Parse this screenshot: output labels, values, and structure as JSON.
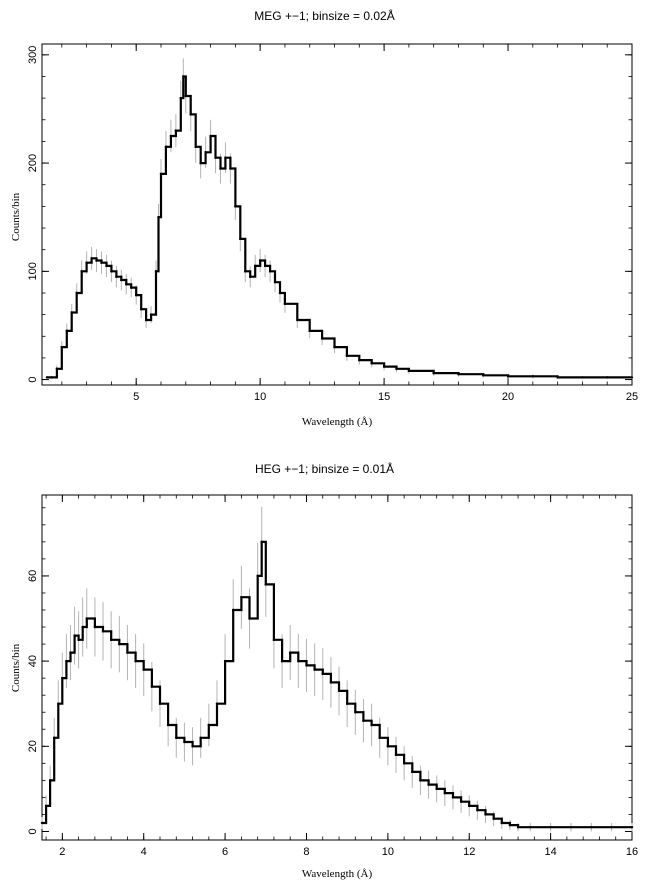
{
  "chart_data": [
    {
      "type": "line",
      "title": "MEG +−1; binsize = 0.02Å",
      "xlabel": "Wavelength (Å)",
      "ylabel": "Counts/bin",
      "xlim": [
        1.2,
        25
      ],
      "ylim": [
        -5,
        310
      ],
      "xticks": [
        5,
        10,
        15,
        20,
        25
      ],
      "yticks": [
        0,
        100,
        200,
        300
      ],
      "grid": false,
      "legend": "none",
      "line_color": "#000000",
      "error_color": "#b4b4b4",
      "series": [
        {
          "x": [
            1.4,
            1.6,
            1.8,
            2.0,
            2.2,
            2.4,
            2.6,
            2.8,
            3.0,
            3.2,
            3.4,
            3.6,
            3.8,
            4.0,
            4.2,
            4.4,
            4.6,
            4.8,
            5.0,
            5.2,
            5.4,
            5.6,
            5.8,
            5.9,
            6.0,
            6.2,
            6.4,
            6.6,
            6.8,
            6.9,
            7.0,
            7.2,
            7.4,
            7.6,
            7.8,
            8.0,
            8.2,
            8.4,
            8.6,
            8.8,
            9.0,
            9.2,
            9.4,
            9.6,
            9.8,
            10.0,
            10.2,
            10.4,
            10.6,
            10.8,
            11.0,
            11.5,
            12.0,
            12.5,
            13.0,
            13.5,
            14.0,
            14.5,
            15.0,
            15.5,
            16.0,
            17.0,
            18.0,
            19.0,
            20.0,
            21.0,
            22.0,
            23.0,
            24.0,
            25.0
          ],
          "y": [
            2,
            2,
            10,
            30,
            45,
            62,
            80,
            100,
            108,
            112,
            110,
            108,
            105,
            100,
            95,
            92,
            88,
            85,
            78,
            65,
            55,
            60,
            100,
            150,
            190,
            215,
            225,
            230,
            260,
            280,
            262,
            245,
            215,
            200,
            210,
            225,
            205,
            195,
            205,
            195,
            160,
            130,
            100,
            95,
            105,
            110,
            105,
            100,
            90,
            80,
            70,
            55,
            45,
            38,
            30,
            22,
            18,
            15,
            12,
            10,
            8,
            6,
            5,
            4,
            3,
            3,
            2,
            2,
            2,
            2
          ]
        }
      ]
    },
    {
      "type": "line",
      "title": "HEG +−1; binsize = 0.01Å",
      "xlabel": "Wavelength (Å)",
      "ylabel": "Counts/bin",
      "xlim": [
        1.5,
        16
      ],
      "ylim": [
        -2,
        79
      ],
      "xticks": [
        2,
        4,
        6,
        8,
        10,
        12,
        14,
        16
      ],
      "yticks": [
        0,
        20,
        40,
        60
      ],
      "grid": false,
      "legend": "none",
      "line_color": "#000000",
      "error_color": "#b4b4b4",
      "series": [
        {
          "x": [
            1.5,
            1.6,
            1.7,
            1.8,
            1.9,
            2.0,
            2.1,
            2.2,
            2.3,
            2.4,
            2.5,
            2.6,
            2.8,
            3.0,
            3.2,
            3.4,
            3.6,
            3.8,
            4.0,
            4.2,
            4.4,
            4.6,
            4.8,
            5.0,
            5.2,
            5.4,
            5.6,
            5.8,
            6.0,
            6.2,
            6.4,
            6.6,
            6.8,
            6.9,
            7.0,
            7.2,
            7.4,
            7.6,
            7.8,
            8.0,
            8.2,
            8.4,
            8.6,
            8.8,
            9.0,
            9.2,
            9.4,
            9.6,
            9.8,
            10.0,
            10.2,
            10.4,
            10.6,
            10.8,
            11.0,
            11.2,
            11.4,
            11.6,
            11.8,
            12.0,
            12.2,
            12.4,
            12.6,
            12.8,
            13.0,
            13.2,
            13.5,
            14.0,
            14.5,
            15.0,
            15.5,
            16.0
          ],
          "y": [
            2,
            6,
            12,
            22,
            30,
            36,
            40,
            42,
            46,
            45,
            48,
            50,
            48,
            47,
            45,
            44,
            42,
            40,
            38,
            34,
            30,
            25,
            22,
            21,
            20,
            22,
            25,
            30,
            40,
            52,
            55,
            50,
            60,
            68,
            58,
            45,
            40,
            42,
            40,
            39,
            38,
            37,
            35,
            33,
            30,
            28,
            26,
            25,
            22,
            20,
            18,
            16,
            14,
            12,
            11,
            10,
            9,
            8,
            7,
            6,
            5,
            4,
            3,
            2,
            1.5,
            1,
            1,
            1,
            1,
            1,
            1,
            1
          ]
        }
      ]
    }
  ]
}
